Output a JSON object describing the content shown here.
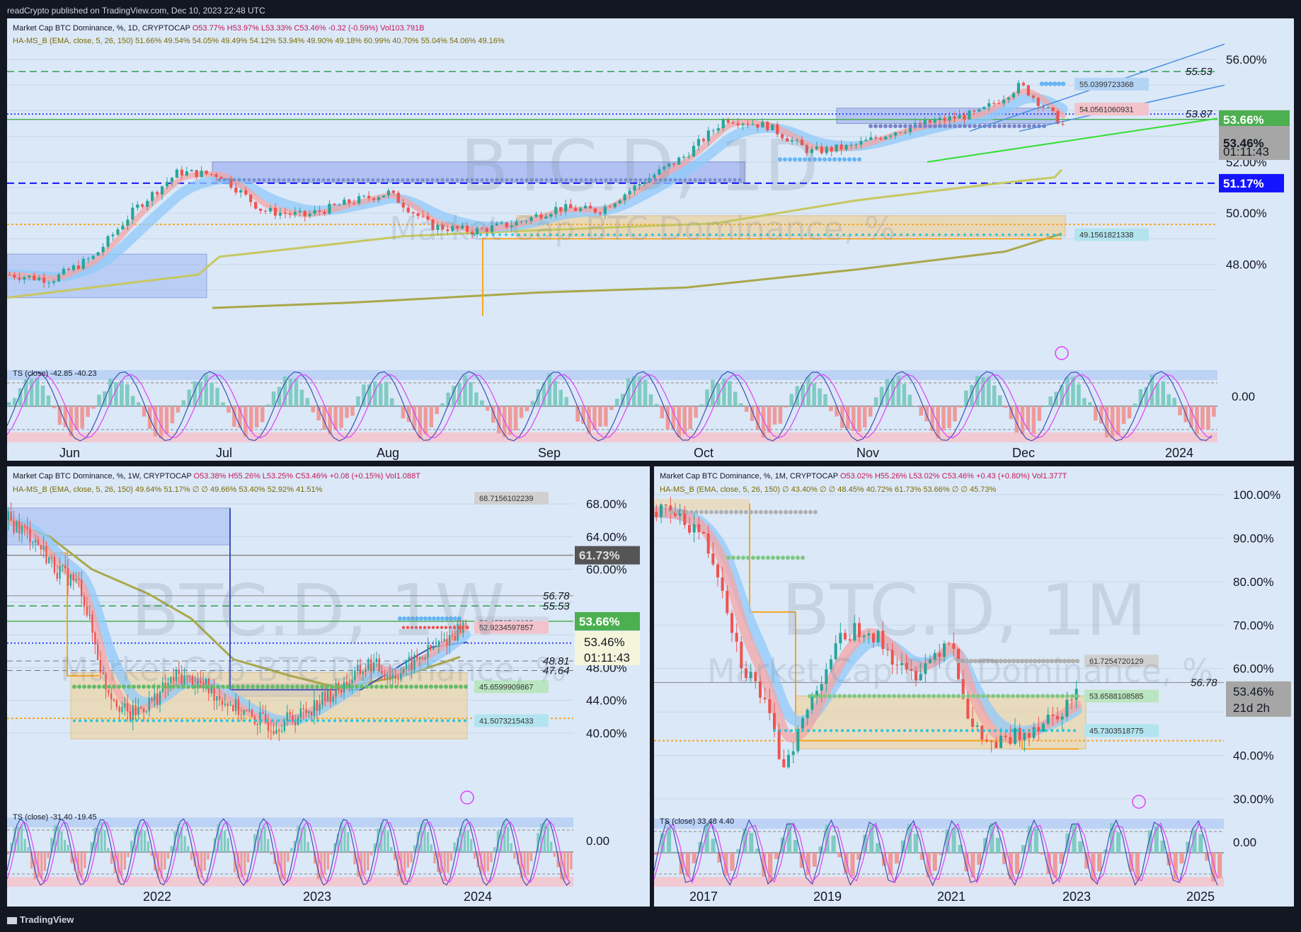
{
  "publisher_line": "readCrypto published on TradingView.com, Dec 10, 2023 22:48 UTC",
  "footer_brand": "TradingView",
  "panels": {
    "daily": {
      "legend1_title": "Market Cap BTC Dominance, %, 1D, CRYPTOCAP",
      "legend1_ohlc": "O53.77% H53.97% L53.33% C53.46% -0.32 (-0.59%) Vol103.791B",
      "legend2": "HA-MS_B (EMA, close, 5, 26, 150) 51.66% 49.54% 54.05% 49.49% 54.12% 53.94% 49.90% 49.18% 60.99% 40.70% 55.04% 54.06% 49.16%",
      "watermark_big": "BTC.D, 1D",
      "watermark_small": "Market Cap BTC Dominance, %",
      "ts_label": "TS (close) -42.85 -40.23",
      "y_ticks": [
        "56.00%",
        "52.00%",
        "50.00%",
        "48.00%",
        "0.00"
      ],
      "x_ticks": [
        "Jun",
        "Jul",
        "Aug",
        "Sep",
        "Oct",
        "Nov",
        "Dec",
        "2024"
      ],
      "price_tags": {
        "green": "53.66%",
        "gray": "53.46%",
        "countdown": "01:11:43",
        "blue": "51.17%"
      },
      "line_labels": [
        "55.53",
        "53.87"
      ],
      "box_labels": [
        "55.0399723368",
        "54.0561060931",
        "49.1561821338"
      ]
    },
    "weekly": {
      "legend1_title": "Market Cap BTC Dominance, %, 1W, CRYPTOCAP",
      "legend1_ohlc": "O53.38% H55.26% L53.25% C53.46% +0.08 (+0.15%) Vol1.088T",
      "legend2": "HA-MS_B (EMA, close, 5, 26, 150) 49.64% 51.17% ∅ ∅ 49.66% 53.40% 52.92% 41.51%",
      "watermark_big": "BTC.D, 1W",
      "watermark_small": "Market Cap BTC Dominance, %",
      "ts_label": "TS (close) -31.40 -19.45",
      "y_ticks": [
        "68.00%",
        "64.00%",
        "60.00%",
        "48.00%",
        "44.00%",
        "40.00%",
        "0.00"
      ],
      "x_ticks": [
        "2022",
        "2023",
        "2024"
      ],
      "price_tags": {
        "gray_dark": "61.73%",
        "green": "53.66%",
        "price": "53.46%",
        "countdown": "01:11:43"
      },
      "line_labels": [
        "56.78",
        "55.53",
        "48.81",
        "47.64"
      ],
      "box_labels": [
        "68.7156102239",
        "53.4576742023",
        "52.9234597857",
        "45.6599909867",
        "41.5073215433"
      ]
    },
    "monthly": {
      "legend1_title": "Market Cap BTC Dominance, %, 1M, CRYPTOCAP",
      "legend1_ohlc": "O53.02% H55.26% L53.02% C53.46% +0.43 (+0.80%) Vol1.377T",
      "legend2": "HA-MS_B (EMA, close, 5, 26, 150) ∅ 43.40% ∅ ∅ 48.45% 40.72% 61.73% 53.66% ∅ ∅ 45.73%",
      "watermark_big": "BTC.D, 1M",
      "watermark_small": "Market Cap BTC Dominance, %",
      "ts_label": "TS (close) 33.48 4.40",
      "y_ticks": [
        "100.00%",
        "90.00%",
        "80.00%",
        "70.00%",
        "60.00%",
        "40.00%",
        "30.00%",
        "0.00"
      ],
      "x_ticks": [
        "2017",
        "2019",
        "2021",
        "2023",
        "2025"
      ],
      "price_tags": {
        "price": "53.46%",
        "countdown": "21d 2h"
      },
      "line_labels": [
        "56.78"
      ],
      "box_labels": [
        "61.7254720129",
        "53.6588108585",
        "45.7303518775"
      ]
    }
  },
  "colors": {
    "bg": "#131722",
    "panel": "#dbe8f7",
    "green": "#4caf50",
    "blue": "#1414ff",
    "orange": "#f5a623",
    "band_blue": "#90caf9",
    "band_red": "#ef9a9a"
  },
  "chart_data": [
    {
      "type": "candlestick",
      "timeframe": "1D",
      "x": [
        "Jun",
        "Jul",
        "Aug",
        "Sep",
        "Oct",
        "Nov",
        "Dec"
      ],
      "close_approx": [
        47.6,
        51.6,
        50.2,
        49.2,
        50.4,
        53.6,
        52.8,
        53.46
      ],
      "ylim": [
        46.0,
        56.5
      ],
      "levels": [
        55.53,
        53.87,
        53.66,
        51.17,
        49.16
      ]
    },
    {
      "type": "candlestick",
      "timeframe": "1W",
      "x": [
        "2022",
        "2023",
        "2024"
      ],
      "close_approx": [
        66.0,
        42.0,
        41.0,
        46.0,
        48.5,
        53.46
      ],
      "ylim": [
        38.0,
        70.0
      ],
      "levels": [
        61.73,
        56.78,
        55.53,
        53.66,
        48.81,
        47.64,
        45.66,
        41.51
      ]
    },
    {
      "type": "candlestick",
      "timeframe": "1M",
      "x": [
        "2017",
        "2019",
        "2021",
        "2023",
        "2025"
      ],
      "close_approx": [
        96.0,
        86.0,
        60.0,
        38.0,
        55.0,
        68.0,
        70.0,
        47.0,
        42.0,
        53.46
      ],
      "ylim": [
        30.0,
        100.0
      ],
      "levels": [
        61.73,
        56.78,
        53.66,
        45.73
      ]
    }
  ]
}
